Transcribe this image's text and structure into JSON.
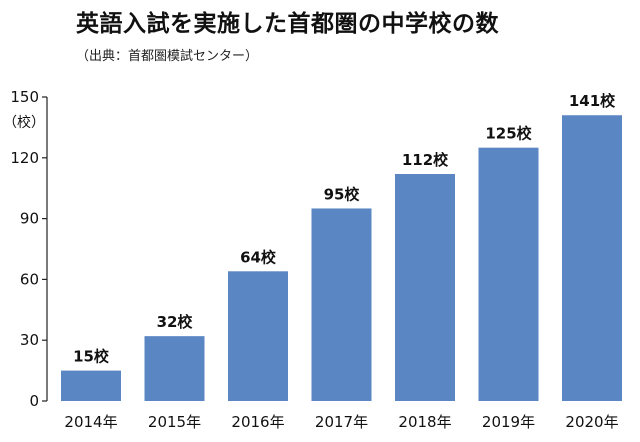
{
  "chart_data": {
    "type": "bar",
    "title": "英語入試を実施した首都圏の中学校の数",
    "source": "（出典：首都圏模試センター）",
    "ylabel_unit": "（校）",
    "categories": [
      "2014年",
      "2015年",
      "2016年",
      "2017年",
      "2018年",
      "2019年",
      "2020年"
    ],
    "values": [
      15,
      32,
      64,
      95,
      112,
      125,
      141
    ],
    "data_labels": [
      "15校",
      "32校",
      "64校",
      "95校",
      "112校",
      "125校",
      "141校"
    ],
    "yticks": [
      0,
      30,
      60,
      90,
      120,
      150
    ],
    "ylim": [
      0,
      150
    ],
    "grid": false,
    "bar_color": "#5a86c4"
  }
}
